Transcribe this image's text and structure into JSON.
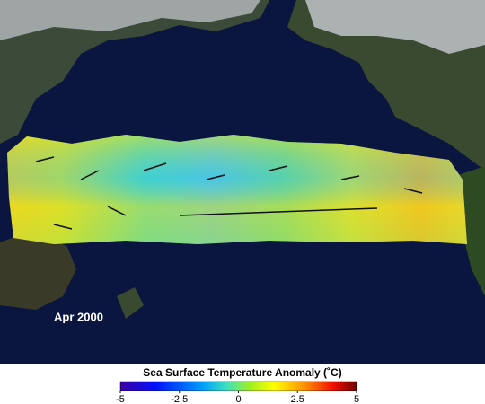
{
  "map": {
    "date_label": "Apr 2000"
  },
  "colorbar": {
    "title": "Sea Surface Temperature Anomaly (˚C)",
    "lim": [
      -5,
      5
    ],
    "ticks": [
      -5,
      -2.5,
      0,
      2.5,
      5
    ]
  }
}
